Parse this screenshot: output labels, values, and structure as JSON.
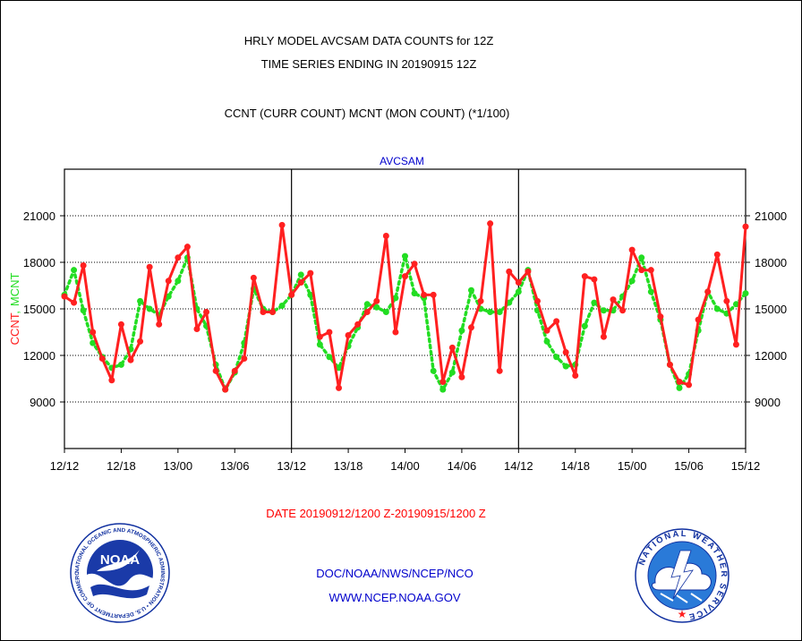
{
  "header": {
    "line1": "HRLY MODEL AVCSAM DATA COUNTS for 12Z",
    "line2": "TIME SERIES ENDING IN 20190915 12Z",
    "line3": "CCNT (CURR COUNT) MCNT (MON COUNT) (*1/100)"
  },
  "footer": {
    "date_range": "DATE 20190912/1200 Z-20190915/1200 Z",
    "org": "DOC/NOAA/NWS/NCEP/NCO",
    "url": "WWW.NCEP.NOAA.GOV"
  },
  "logos": {
    "noaa": {
      "text": "NOAA",
      "ring_text": "NATIONAL OCEANIC AND ATMOSPHERIC ADMINISTRATION • U.S. DEPARTMENT OF COMMERCE"
    },
    "nws": {
      "ring_text": "NATIONAL WEATHER SERVICE"
    }
  },
  "colors": {
    "ccnt": "#ff2020",
    "mcnt": "#22dd22",
    "title_blue": "#0000cc",
    "date_red": "#ff0000"
  },
  "chart_data": {
    "type": "line",
    "title": "AVCSAM",
    "ylabel_parts": [
      "CCNT",
      ",",
      "MCNT"
    ],
    "ylim": [
      6000,
      24000
    ],
    "yticks": [
      9000,
      12000,
      15000,
      18000,
      21000
    ],
    "xlim": [
      0,
      72
    ],
    "xticks": [
      0,
      6,
      12,
      18,
      24,
      30,
      36,
      42,
      48,
      54,
      60,
      66,
      72
    ],
    "xtick_labels": [
      "12/12",
      "12/18",
      "13/00",
      "13/06",
      "13/12",
      "13/18",
      "14/00",
      "14/06",
      "14/12",
      "14/18",
      "15/00",
      "15/06",
      "15/12"
    ],
    "panel_dividers": [
      24,
      48
    ],
    "grid": "horizontal dotted",
    "x": [
      0,
      1,
      2,
      3,
      4,
      5,
      6,
      7,
      8,
      9,
      10,
      11,
      12,
      13,
      14,
      15,
      16,
      17,
      18,
      19,
      20,
      21,
      22,
      23,
      24,
      25,
      26,
      27,
      28,
      29,
      30,
      31,
      32,
      33,
      34,
      35,
      36,
      37,
      38,
      39,
      40,
      41,
      42,
      43,
      44,
      45,
      46,
      47,
      48,
      49,
      50,
      51,
      52,
      53,
      54,
      55,
      56,
      57,
      58,
      59,
      60,
      61,
      62,
      63,
      64,
      65,
      66,
      67,
      68,
      69,
      70,
      71,
      72
    ],
    "series": [
      {
        "name": "CCNT",
        "values": [
          15800,
          15400,
          17800,
          13500,
          11800,
          10400,
          14000,
          11700,
          12900,
          17700,
          14000,
          16800,
          18300,
          19000,
          13700,
          14800,
          11000,
          9800,
          11000,
          11800,
          17000,
          14800,
          14800,
          20400,
          15900,
          16700,
          17300,
          13200,
          13500,
          9900,
          13300,
          14000,
          14800,
          15500,
          19700,
          13500,
          17100,
          17900,
          15900,
          15900,
          10300,
          12500,
          10600,
          13800,
          15500,
          20500,
          11000,
          17400,
          16700,
          17400,
          15500,
          13600,
          14200,
          12200,
          10700,
          17100,
          16900,
          13200,
          15600,
          14900,
          18800,
          17500,
          17500,
          14500,
          11400,
          10300,
          10100,
          14300,
          16100,
          18500,
          15500,
          12700,
          20300
        ]
      },
      {
        "name": "MCNT",
        "values": [
          15900,
          17500,
          14900,
          12800,
          11900,
          11200,
          11400,
          12400,
          15500,
          15000,
          14600,
          15800,
          16800,
          18300,
          15000,
          13900,
          11400,
          9800,
          10900,
          12800,
          16300,
          15000,
          14800,
          15200,
          15900,
          17200,
          15900,
          12700,
          11900,
          11200,
          12600,
          13800,
          15300,
          15100,
          14800,
          15700,
          18400,
          16000,
          15700,
          11000,
          9800,
          10900,
          13600,
          16200,
          15000,
          14800,
          14800,
          15400,
          16100,
          17500,
          14900,
          12900,
          11900,
          11300,
          11400,
          13900,
          15400,
          14900,
          14900,
          15800,
          16800,
          18300,
          16100,
          14300,
          11400,
          9900,
          10800,
          13600,
          16100,
          15000,
          14700,
          15300,
          16000
        ]
      }
    ]
  }
}
